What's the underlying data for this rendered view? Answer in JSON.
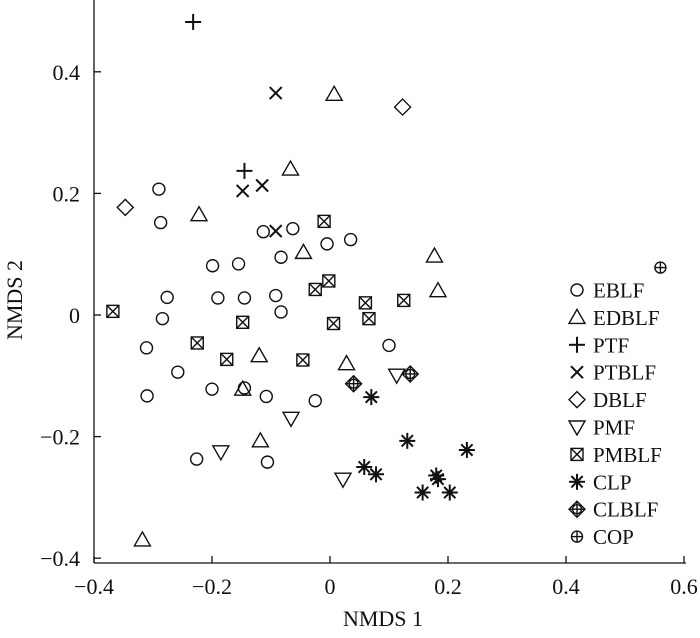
{
  "chart_data": {
    "type": "scatter",
    "xlabel": "NMDS 1",
    "ylabel": "NMDS 2",
    "xlim": [
      -0.4,
      0.6
    ],
    "ylim": [
      -0.4,
      0.5
    ],
    "xticks": [
      "−0.4",
      "−0.2",
      "0",
      "0.2",
      "0.4",
      "0.6"
    ],
    "xtick_values": [
      -0.4,
      -0.2,
      0,
      0.2,
      0.4,
      0.6
    ],
    "yticks": [
      "−0.4",
      "−0.2",
      "0",
      "0.2",
      "0.4"
    ],
    "ytick_values": [
      -0.4,
      -0.2,
      0,
      0.2,
      0.4
    ],
    "grid": false,
    "legend_position": "right",
    "series": [
      {
        "name": "EBLF",
        "marker": "circle",
        "points": [
          [
            -0.29,
            0.207
          ],
          [
            -0.287,
            0.152
          ],
          [
            -0.276,
            0.029
          ],
          [
            -0.284,
            -0.006
          ],
          [
            -0.311,
            -0.054
          ],
          [
            -0.31,
            -0.133
          ],
          [
            -0.258,
            -0.094
          ],
          [
            -0.226,
            -0.237
          ],
          [
            -0.199,
            0.081
          ],
          [
            -0.19,
            0.028
          ],
          [
            -0.2,
            -0.122
          ],
          [
            -0.155,
            0.084
          ],
          [
            -0.145,
            0.028
          ],
          [
            -0.145,
            -0.12
          ],
          [
            -0.113,
            0.137
          ],
          [
            -0.108,
            -0.134
          ],
          [
            -0.106,
            -0.242
          ],
          [
            -0.092,
            0.032
          ],
          [
            -0.083,
            0.095
          ],
          [
            -0.083,
            0.005
          ],
          [
            -0.063,
            0.142
          ],
          [
            -0.025,
            -0.141
          ],
          [
            -0.005,
            0.117
          ],
          [
            0.035,
            0.124
          ],
          [
            0.1,
            -0.05
          ]
        ]
      },
      {
        "name": "EDBLF",
        "marker": "triangle-up",
        "points": [
          [
            -0.318,
            -0.37
          ],
          [
            -0.222,
            0.165
          ],
          [
            -0.148,
            -0.122
          ],
          [
            -0.12,
            -0.067
          ],
          [
            -0.118,
            -0.207
          ],
          [
            -0.067,
            0.24
          ],
          [
            -0.045,
            0.103
          ],
          [
            0.007,
            0.363
          ],
          [
            0.028,
            -0.08
          ],
          [
            0.177,
            0.097
          ],
          [
            0.183,
            0.04
          ]
        ]
      },
      {
        "name": "PTF",
        "marker": "plus",
        "points": [
          [
            -0.232,
            0.482
          ],
          [
            -0.145,
            0.237
          ]
        ]
      },
      {
        "name": "PTBLF",
        "marker": "cross",
        "points": [
          [
            -0.092,
            0.365
          ],
          [
            -0.148,
            0.204
          ],
          [
            -0.115,
            0.213
          ],
          [
            -0.092,
            0.138
          ]
        ]
      },
      {
        "name": "DBLF",
        "marker": "diamond",
        "points": [
          [
            -0.347,
            0.177
          ],
          [
            0.123,
            0.342
          ]
        ]
      },
      {
        "name": "PMF",
        "marker": "triangle-down",
        "points": [
          [
            -0.185,
            -0.225
          ],
          [
            -0.066,
            -0.17
          ],
          [
            0.022,
            -0.27
          ],
          [
            0.113,
            -0.099
          ]
        ]
      },
      {
        "name": "PMBLF",
        "marker": "boxed-x",
        "points": [
          [
            -0.368,
            0.006
          ],
          [
            -0.225,
            -0.046
          ],
          [
            -0.175,
            -0.073
          ],
          [
            -0.148,
            -0.012
          ],
          [
            -0.046,
            -0.074
          ],
          [
            -0.025,
            0.042
          ],
          [
            -0.01,
            0.154
          ],
          [
            -0.002,
            0.056
          ],
          [
            0.006,
            -0.014
          ],
          [
            0.06,
            0.02
          ],
          [
            0.066,
            -0.006
          ],
          [
            0.125,
            0.024
          ]
        ]
      },
      {
        "name": "CLP",
        "marker": "asterisk",
        "points": [
          [
            0.07,
            -0.135
          ],
          [
            0.058,
            -0.25
          ],
          [
            0.078,
            -0.262
          ],
          [
            0.131,
            -0.207
          ],
          [
            0.157,
            -0.292
          ],
          [
            0.18,
            -0.264
          ],
          [
            0.183,
            -0.27
          ],
          [
            0.203,
            -0.292
          ],
          [
            0.232,
            -0.222
          ]
        ]
      },
      {
        "name": "CLBLF",
        "marker": "circle-cross-diamond",
        "points": [
          [
            0.04,
            -0.113
          ],
          [
            0.136,
            -0.097
          ]
        ]
      },
      {
        "name": "COP",
        "marker": "circle-plus",
        "points": [
          [
            0.56,
            0.078
          ]
        ]
      }
    ]
  }
}
